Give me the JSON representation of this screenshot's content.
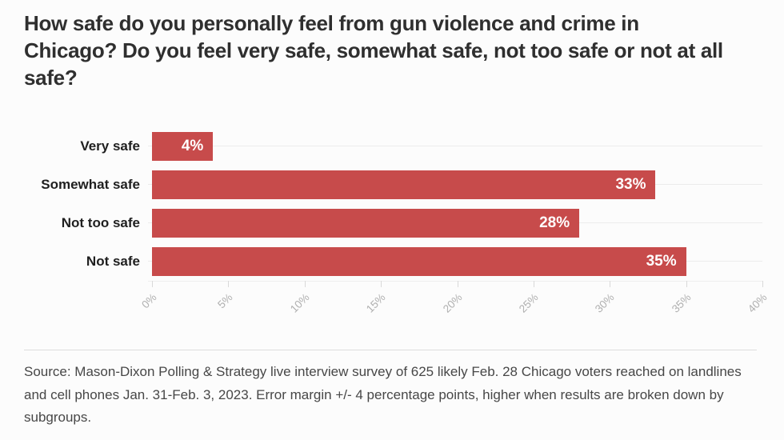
{
  "title": "How safe do you personally feel from gun violence and crime in Chicago? Do you feel very safe, somewhat safe, not too safe or not at all safe?",
  "chart_data": {
    "type": "bar",
    "orientation": "horizontal",
    "title": "How safe do you personally feel from gun violence and crime in Chicago? Do you feel very safe, somewhat safe, not too safe or not at all safe?",
    "categories": [
      "Very safe",
      "Somewhat safe",
      "Not too safe",
      "Not safe"
    ],
    "values": [
      4,
      33,
      28,
      35
    ],
    "value_labels": [
      "4%",
      "33%",
      "28%",
      "35%"
    ],
    "xlim": [
      0,
      40
    ],
    "x_ticks": [
      0,
      5,
      10,
      15,
      20,
      25,
      30,
      35,
      40
    ],
    "x_tick_labels": [
      "0%",
      "5%",
      "10%",
      "15%",
      "20%",
      "25%",
      "30%",
      "35%",
      "40%"
    ],
    "grid": "row-gridlines",
    "legend": "none",
    "bar_color": "#c74b4b",
    "value_label_color": "#ffffff"
  },
  "source": "Source: Mason-Dixon Polling & Strategy live interview survey of 625 likely Feb. 28 Chicago voters reached on landlines and cell phones Jan. 31-Feb. 3, 2023. Error margin +/- 4 percentage points, higher when results are broken down by subgroups."
}
